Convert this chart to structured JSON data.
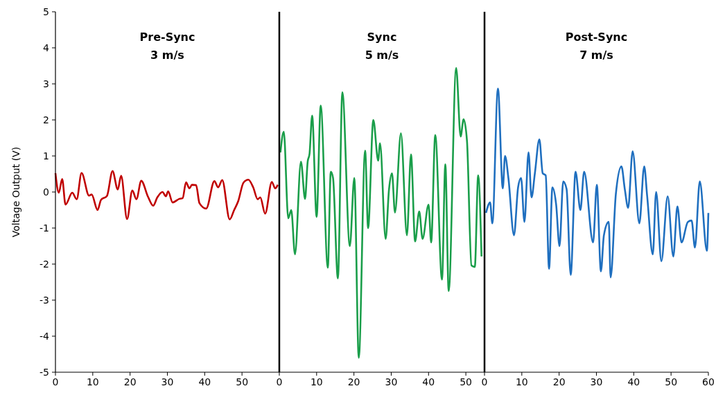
{
  "chart_data": [
    {
      "type": "line",
      "title": "Pre-Sync",
      "subtitle": "3 m/s",
      "ylabel": "Voltage Output (V)",
      "xlim": [
        0,
        60
      ],
      "xticks": [
        0,
        10,
        20,
        30,
        40,
        50
      ],
      "ylim": [
        -5,
        5
      ],
      "yticks": [
        -5,
        -4,
        -3,
        -2,
        -1,
        0,
        1,
        2,
        3,
        4,
        5
      ],
      "x": [
        0,
        0.9,
        1.8,
        2.7,
        4.5,
        5.7,
        7.0,
        9.0,
        9.7,
        11.3,
        12.2,
        13.8,
        15.3,
        16.7,
        17.6,
        19.2,
        20.6,
        21.7,
        23.0,
        24.8,
        26.2,
        27.3,
        28.7,
        29.6,
        30.2,
        31.4,
        33.2,
        34.1,
        35.0,
        35.9,
        36.6,
        37.7,
        38.6,
        40.4,
        42.6,
        43.6,
        44.7,
        46.7,
        47.9,
        49.0,
        50.4,
        51.7,
        53.0,
        54.2,
        54.9,
        56.2,
        58.0,
        58.9,
        59.6
      ],
      "series": [
        {
          "color": "#c00000",
          "values": [
            0.52,
            -0.02,
            0.36,
            -0.35,
            -0.02,
            -0.2,
            0.53,
            -0.1,
            -0.07,
            -0.5,
            -0.22,
            -0.11,
            0.58,
            0.07,
            0.45,
            -0.75,
            0.04,
            -0.2,
            0.31,
            -0.13,
            -0.38,
            -0.15,
            0,
            -0.12,
            0.02,
            -0.29,
            -0.19,
            -0.17,
            0.27,
            0.1,
            0.2,
            0.19,
            -0.31,
            -0.46,
            0.3,
            0.13,
            0.33,
            -0.76,
            -0.5,
            -0.25,
            0.26,
            0.34,
            0.13,
            -0.2,
            -0.15,
            -0.6,
            0.28,
            0.1,
            0.2
          ]
        }
      ]
    },
    {
      "type": "line",
      "title": "Sync",
      "subtitle": "5 m/s",
      "tick_labels": "x",
      "xlim": [
        0,
        55
      ],
      "xticks": [
        0,
        10,
        20,
        30,
        40,
        50
      ],
      "ylim": [
        -5,
        5
      ],
      "x": [
        0.3,
        1.2,
        2.4,
        3.2,
        4.2,
        5.8,
        6.9,
        7.6,
        8.1,
        8.8,
        10.0,
        11.1,
        13.0,
        13.8,
        14.4,
        15.7,
        16.9,
        18.9,
        20.1,
        21.3,
        23.0,
        23.8,
        25.2,
        26.5,
        27.0,
        28.5,
        29.4,
        30.2,
        31.0,
        32.6,
        34.2,
        35.3,
        36.4,
        37.5,
        38.4,
        40.0,
        40.7,
        41.8,
        43.6,
        44.5,
        45.4,
        47.4,
        48.6,
        49.4,
        50.3,
        51.5,
        52.4,
        53.3,
        54.2
      ],
      "series": [
        {
          "color": "#1a9e4a",
          "values": [
            1.1,
            1.67,
            -0.73,
            -0.5,
            -1.73,
            0.84,
            -0.19,
            0.84,
            1.06,
            2.12,
            -0.69,
            2.4,
            -2.1,
            0.56,
            0.39,
            -2.4,
            2.77,
            -1.5,
            0.39,
            -4.6,
            1.15,
            -1.0,
            2.0,
            0.87,
            1.35,
            -1.3,
            0.07,
            0.52,
            -0.57,
            1.63,
            -1.2,
            1.04,
            -1.37,
            -0.54,
            -1.3,
            -0.35,
            -1.4,
            1.58,
            -2.43,
            0.77,
            -2.75,
            3.44,
            1.54,
            2.02,
            1.42,
            -2.04,
            -2.08,
            0.46,
            -1.79
          ]
        }
      ]
    },
    {
      "type": "line",
      "title": "Post-Sync",
      "subtitle": "7 m/s",
      "tick_labels": "x",
      "xlim": [
        0,
        60
      ],
      "xticks": [
        0,
        10,
        20,
        30,
        40,
        50,
        60
      ],
      "ylim": [
        -5,
        5
      ],
      "x": [
        0.4,
        1.5,
        2.1,
        3.6,
        4.9,
        5.5,
        6.4,
        7.9,
        9.0,
        9.8,
        10.7,
        11.8,
        12.6,
        13.5,
        14.7,
        15.6,
        16.4,
        17.3,
        18.2,
        19.2,
        20.1,
        21.1,
        22.0,
        23.1,
        24.4,
        25.7,
        26.7,
        29.1,
        30.1,
        31.2,
        32.0,
        33.3,
        33.8,
        35.2,
        36.7,
        37.6,
        38.5,
        39.7,
        41.5,
        42.8,
        43.6,
        45.1,
        46.0,
        47.4,
        49.1,
        50.6,
        51.7,
        52.8,
        54.5,
        55.5,
        56.4,
        57.7,
        59.6,
        60
      ],
      "series": [
        {
          "color": "#1f6fbf",
          "values": [
            -0.58,
            -0.29,
            -0.87,
            2.87,
            0.1,
            1.0,
            0.39,
            -1.2,
            0.13,
            0.39,
            -0.83,
            1.1,
            -0.15,
            0.52,
            1.46,
            0.52,
            0.46,
            -2.13,
            0.13,
            -0.35,
            -1.5,
            0.29,
            0.08,
            -2.3,
            0.56,
            -0.5,
            0.56,
            -1.4,
            0.2,
            -2.2,
            -1.2,
            -0.83,
            -2.37,
            -0.06,
            0.71,
            0.08,
            -0.44,
            1.13,
            -0.87,
            0.71,
            -0.12,
            -1.73,
            0,
            -1.92,
            -0.12,
            -1.79,
            -0.4,
            -1.4,
            -0.83,
            -0.79,
            -1.54,
            0.29,
            -1.63,
            -0.58
          ]
        }
      ]
    }
  ]
}
